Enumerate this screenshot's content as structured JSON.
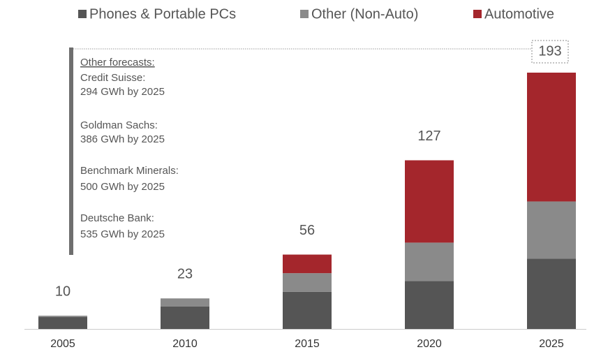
{
  "chart_data": {
    "type": "stacked_bar",
    "categories": [
      "2005",
      "2010",
      "2015",
      "2020",
      "2025"
    ],
    "series": [
      {
        "name": "Phones & Portable PCs",
        "color": "#555555",
        "values": [
          9,
          17,
          28,
          36,
          53
        ]
      },
      {
        "name": "Other (Non-Auto)",
        "color": "#8a8a8a",
        "values": [
          1,
          6,
          14,
          29,
          43
        ]
      },
      {
        "name": "Automotive",
        "color": "#a4262c",
        "values": [
          0,
          0,
          14,
          62,
          97
        ]
      }
    ],
    "totals": [
      10,
      23,
      56,
      127,
      193
    ],
    "annotation": {
      "heading": "Other forecasts:",
      "items": [
        {
          "name": "Credit Suisse:",
          "value": "294 GWh by 2025"
        },
        {
          "name": "Goldman Sachs:",
          "value": "386 GWh by 2025"
        },
        {
          "name": "Benchmark Minerals:",
          "value": "500 GWh by 2025"
        },
        {
          "name": "Deutsche Bank:",
          "value": "535 GWh by 2025"
        }
      ]
    }
  }
}
